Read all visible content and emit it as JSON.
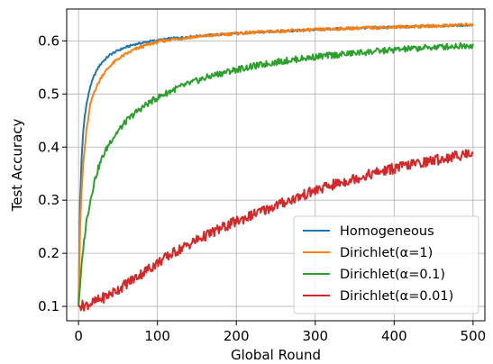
{
  "chart_data": {
    "type": "line",
    "title": "",
    "xlabel": "Global Round",
    "ylabel": "Test Accuracy",
    "xlim": [
      -15,
      515
    ],
    "ylim": [
      0.073,
      0.66
    ],
    "xticks": [
      0,
      100,
      200,
      300,
      400,
      500
    ],
    "yticks": [
      0.1,
      0.2,
      0.3,
      0.4,
      0.5,
      0.6
    ],
    "xtick_labels": [
      "0",
      "100",
      "200",
      "300",
      "400",
      "500"
    ],
    "ytick_labels": [
      "0.1",
      "0.2",
      "0.3",
      "0.4",
      "0.5",
      "0.6"
    ],
    "grid": true,
    "legend_position": "lower-right",
    "series": [
      {
        "name": "Homogeneous",
        "color": "#1f77b4",
        "x": [
          0,
          2,
          4,
          6,
          8,
          10,
          15,
          20,
          25,
          30,
          40,
          50,
          60,
          70,
          80,
          90,
          100,
          120,
          150,
          200,
          250,
          300,
          350,
          400,
          450,
          500
        ],
        "y": [
          0.1,
          0.3,
          0.38,
          0.43,
          0.46,
          0.48,
          0.515,
          0.535,
          0.55,
          0.56,
          0.574,
          0.582,
          0.588,
          0.593,
          0.596,
          0.599,
          0.601,
          0.605,
          0.609,
          0.614,
          0.618,
          0.621,
          0.624,
          0.626,
          0.628,
          0.63
        ]
      },
      {
        "name": "Dirichlet(α=1)",
        "color": "#ff7f0e",
        "x": [
          0,
          2,
          4,
          6,
          8,
          10,
          15,
          20,
          25,
          30,
          40,
          50,
          60,
          70,
          80,
          90,
          100,
          120,
          150,
          200,
          250,
          300,
          350,
          400,
          450,
          500
        ],
        "y": [
          0.1,
          0.25,
          0.32,
          0.37,
          0.4,
          0.43,
          0.48,
          0.505,
          0.52,
          0.535,
          0.553,
          0.566,
          0.575,
          0.583,
          0.589,
          0.594,
          0.598,
          0.603,
          0.608,
          0.614,
          0.618,
          0.621,
          0.624,
          0.626,
          0.628,
          0.631
        ]
      },
      {
        "name": "Dirichlet(α=0.1)",
        "color": "#2ca02c",
        "x": [
          0,
          3,
          6,
          10,
          15,
          20,
          25,
          30,
          40,
          50,
          60,
          70,
          80,
          90,
          100,
          120,
          150,
          175,
          200,
          250,
          300,
          350,
          400,
          450,
          500
        ],
        "y": [
          0.1,
          0.16,
          0.21,
          0.26,
          0.3,
          0.335,
          0.36,
          0.38,
          0.41,
          0.43,
          0.448,
          0.462,
          0.474,
          0.484,
          0.493,
          0.508,
          0.525,
          0.537,
          0.546,
          0.56,
          0.57,
          0.577,
          0.583,
          0.588,
          0.592
        ]
      },
      {
        "name": "Dirichlet(α=0.01)",
        "color": "#d62728",
        "x": [
          0,
          10,
          20,
          30,
          40,
          50,
          60,
          70,
          80,
          90,
          100,
          125,
          150,
          175,
          200,
          225,
          250,
          275,
          300,
          325,
          350,
          375,
          400,
          425,
          450,
          475,
          500
        ],
        "y": [
          0.1,
          0.103,
          0.108,
          0.115,
          0.123,
          0.132,
          0.142,
          0.152,
          0.162,
          0.172,
          0.182,
          0.205,
          0.225,
          0.243,
          0.26,
          0.275,
          0.29,
          0.304,
          0.318,
          0.33,
          0.341,
          0.351,
          0.36,
          0.368,
          0.375,
          0.382,
          0.39
        ]
      }
    ]
  }
}
